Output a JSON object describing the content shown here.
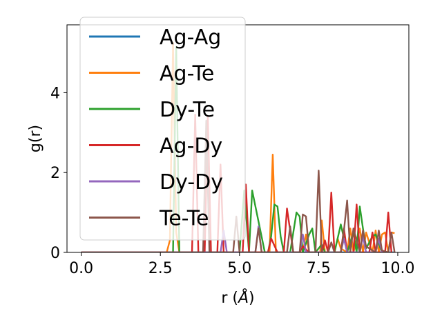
{
  "chart_data": {
    "type": "line",
    "title": "",
    "xlabel": "r (",
    "xlabel_unit": "Å",
    "xlabel_close": ")",
    "ylabel": "g(r)",
    "xlim": [
      -0.45,
      10.35
    ],
    "ylim": [
      0,
      5.7
    ],
    "xticks": [
      0.0,
      2.5,
      5.0,
      7.5,
      10.0
    ],
    "xtick_labels": [
      "0.0",
      "2.5",
      "5.0",
      "7.5",
      "10.0"
    ],
    "yticks": [
      0,
      2,
      4
    ],
    "ytick_labels": [
      "0",
      "2",
      "4"
    ],
    "grid": false,
    "legend_position": "upper-left",
    "series": [
      {
        "name": "Ag-Ag",
        "color": "#1f77b4",
        "x": [
          0,
          9.9
        ],
        "y": [
          0,
          0
        ]
      },
      {
        "name": "Ag-Te",
        "color": "#ff7f0e",
        "x": [
          0,
          2.7,
          2.8,
          2.9,
          3.0,
          3.1,
          5.8,
          5.95,
          6.05,
          6.15,
          6.3,
          7.0,
          7.1,
          7.2,
          7.3,
          7.55,
          7.6,
          7.7,
          8.0,
          8.1,
          8.2,
          8.4,
          8.5,
          8.6,
          8.8,
          8.9,
          9.0,
          9.2,
          9.3,
          9.4,
          9.5,
          9.6,
          9.7,
          9.8,
          9.9
        ],
        "y": [
          0,
          0,
          0.3,
          5.25,
          0.5,
          0,
          0,
          0,
          2.45,
          0,
          0,
          0,
          0.45,
          0,
          0,
          0,
          0.8,
          0,
          0,
          0.35,
          0.1,
          0,
          0.6,
          0,
          0.6,
          0,
          0.5,
          0,
          0.55,
          0,
          0.45,
          0.5,
          0,
          0.5,
          0.48
        ]
      },
      {
        "name": "Dy-Te",
        "color": "#2ca02c",
        "x": [
          0,
          2.9,
          3.0,
          3.1,
          5.0,
          5.15,
          5.3,
          5.4,
          5.8,
          5.9,
          6.0,
          6.1,
          6.2,
          6.3,
          6.4,
          6.6,
          6.8,
          6.9,
          7.0,
          7.2,
          7.3,
          7.4,
          7.6,
          7.7,
          8.0,
          8.2,
          8.4,
          8.6,
          8.7,
          8.8,
          8.9,
          9.0,
          9.2,
          9.3,
          9.5
        ],
        "y": [
          0,
          0,
          5.15,
          0,
          0,
          1.55,
          0,
          1.55,
          0,
          0,
          0.4,
          1.2,
          1.15,
          0.4,
          0,
          0,
          1.0,
          0.9,
          0,
          0.45,
          0.6,
          0,
          0.2,
          0,
          0,
          0.7,
          0,
          0.5,
          0,
          1.15,
          0.6,
          0.1,
          0.4,
          0.45,
          0
        ]
      },
      {
        "name": "Ag-Dy",
        "color": "#d62728",
        "x": [
          0,
          3.5,
          3.6,
          3.7,
          3.9,
          4.0,
          4.1,
          4.3,
          4.4,
          4.5,
          5.1,
          5.2,
          5.3,
          5.9,
          6.0,
          6.2,
          6.4,
          6.5,
          6.7,
          6.9,
          7.0,
          7.2,
          7.6,
          7.7,
          7.8,
          7.9,
          8.0,
          8.2,
          8.3,
          8.4,
          8.6,
          8.7,
          8.8,
          9.1,
          9.2,
          9.3,
          9.6,
          9.7,
          9.8
        ],
        "y": [
          0,
          0,
          3.45,
          0,
          0,
          3.4,
          0,
          0,
          2.2,
          0,
          0,
          1.7,
          0,
          0,
          0.35,
          0,
          0,
          1.1,
          0,
          0,
          0.15,
          0,
          0,
          0.3,
          0,
          1.5,
          0,
          0,
          0.6,
          0,
          0,
          1.2,
          0,
          0,
          0.5,
          0,
          0,
          1.0,
          0
        ]
      },
      {
        "name": "Dy-Dy",
        "color": "#9467bd",
        "x": [
          0,
          4.4,
          4.5,
          4.6,
          5.5,
          5.6,
          5.7,
          6.9,
          7.0,
          7.1,
          8.2,
          8.3,
          8.4,
          8.8,
          8.9,
          9.0,
          9.3,
          9.4,
          9.5
        ],
        "y": [
          0,
          0,
          0.55,
          0,
          0,
          0.65,
          0,
          0,
          0.45,
          0,
          0,
          0.35,
          0,
          0,
          0.4,
          0,
          0,
          0.35,
          0
        ]
      },
      {
        "name": "Te-Te",
        "color": "#8c564b",
        "x": [
          0,
          3.85,
          3.95,
          4.05,
          4.8,
          4.9,
          5.0,
          5.5,
          5.6,
          5.7,
          6.5,
          6.6,
          6.7,
          6.9,
          7.0,
          7.1,
          7.2,
          7.4,
          7.5,
          7.6,
          7.8,
          7.9,
          8.0,
          8.2,
          8.3,
          8.4,
          8.5,
          8.6,
          8.8,
          8.9,
          9.0,
          9.3,
          9.4,
          9.5,
          9.7,
          9.8,
          9.9
        ],
        "y": [
          0,
          0,
          3.3,
          0,
          0,
          0.9,
          0,
          0,
          0.6,
          0,
          0,
          0.65,
          0,
          0,
          0.95,
          0.9,
          0,
          0,
          2.05,
          0,
          0,
          0.25,
          0,
          0,
          0.55,
          1.3,
          0,
          0.6,
          0,
          0.55,
          0.15,
          0,
          0.55,
          0.05,
          0,
          0.5,
          0
        ]
      }
    ]
  }
}
